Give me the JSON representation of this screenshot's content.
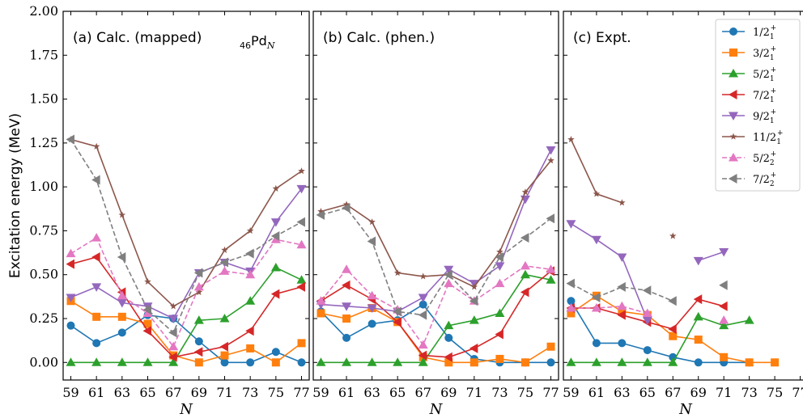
{
  "chart_data": {
    "type": "line",
    "ylabel": "Excitation energy (MeV)",
    "xlabel": "N",
    "ylim": [
      -0.1,
      2.0
    ],
    "yticks": [
      "0.00",
      "0.25",
      "0.50",
      "0.75",
      "1.00",
      "1.25",
      "1.50",
      "1.75",
      "2.00"
    ],
    "xlim": [
      58.4,
      77.6
    ],
    "xticks": [
      59,
      61,
      63,
      65,
      67,
      69,
      71,
      73,
      75,
      77
    ],
    "annotation": {
      "base": "Pd",
      "subscript_left": "46",
      "subscript_right": "N"
    },
    "legend_position": "top-right",
    "series_styles": [
      {
        "name": "1/2₁⁺",
        "color": "#1f77b4",
        "marker": "circle",
        "dash": false
      },
      {
        "name": "3/2₁⁺",
        "color": "#ff7f0e",
        "marker": "square",
        "dash": false
      },
      {
        "name": "5/2₁⁺",
        "color": "#2ca02c",
        "marker": "triangle-up",
        "dash": false
      },
      {
        "name": "7/2₁⁺",
        "color": "#d62728",
        "marker": "triangle-left",
        "dash": false
      },
      {
        "name": "9/2₁⁺",
        "color": "#9467bd",
        "marker": "triangle-down",
        "dash": false
      },
      {
        "name": "11/2₁⁺",
        "color": "#8c564b",
        "marker": "star",
        "dash": false
      },
      {
        "name": "5/2₂⁺",
        "color": "#e377c2",
        "marker": "triangle-up",
        "dash": true
      },
      {
        "name": "7/2₂⁺",
        "color": "#7f7f7f",
        "marker": "triangle-left",
        "dash": true
      }
    ],
    "panels": [
      {
        "title": "(a) Calc. (mapped)",
        "show_annotation": true,
        "show_legend": false,
        "x": [
          59,
          61,
          63,
          65,
          67,
          69,
          71,
          73,
          75,
          77
        ],
        "series": [
          {
            "values": [
              0.21,
              0.11,
              0.17,
              0.27,
              0.25,
              0.12,
              0.0,
              0.0,
              0.06,
              0.0
            ]
          },
          {
            "values": [
              0.35,
              0.26,
              0.26,
              0.22,
              0.04,
              0.0,
              0.04,
              0.08,
              0.0,
              0.11
            ]
          },
          {
            "values": [
              0.0,
              0.0,
              0.0,
              0.0,
              0.0,
              0.24,
              0.25,
              0.35,
              0.54,
              0.47
            ]
          },
          {
            "values": [
              0.56,
              0.6,
              0.4,
              0.18,
              0.03,
              0.06,
              0.09,
              0.18,
              0.39,
              0.43
            ]
          },
          {
            "values": [
              0.37,
              0.43,
              0.34,
              0.32,
              0.25,
              0.51,
              0.57,
              0.52,
              0.8,
              0.99
            ]
          },
          {
            "values": [
              1.27,
              1.23,
              0.84,
              0.46,
              0.32,
              0.4,
              0.64,
              0.75,
              0.99,
              1.09
            ]
          },
          {
            "values": [
              0.62,
              0.71,
              0.38,
              0.28,
              0.09,
              0.43,
              0.52,
              0.5,
              0.7,
              0.67
            ]
          },
          {
            "values": [
              1.27,
              1.04,
              0.6,
              0.3,
              0.17,
              0.51,
              0.57,
              0.62,
              0.72,
              0.8
            ]
          }
        ]
      },
      {
        "title": "(b) Calc. (phen.)",
        "show_annotation": false,
        "show_legend": false,
        "x": [
          59,
          61,
          63,
          65,
          67,
          69,
          71,
          73,
          75,
          77
        ],
        "series": [
          {
            "values": [
              0.29,
              0.14,
              0.22,
              0.24,
              0.33,
              0.14,
              0.02,
              0.0,
              0.0,
              0.0
            ]
          },
          {
            "values": [
              0.28,
              0.25,
              0.31,
              0.23,
              0.03,
              0.0,
              0.0,
              0.02,
              0.0,
              0.09
            ]
          },
          {
            "values": [
              0.0,
              0.0,
              0.0,
              0.0,
              0.0,
              0.21,
              0.24,
              0.28,
              0.5,
              0.47
            ]
          },
          {
            "values": [
              0.35,
              0.44,
              0.36,
              0.23,
              0.04,
              0.03,
              0.08,
              0.16,
              0.4,
              0.52
            ]
          },
          {
            "values": [
              0.33,
              0.32,
              0.31,
              0.29,
              0.37,
              0.53,
              0.45,
              0.55,
              0.93,
              1.21
            ]
          },
          {
            "values": [
              0.86,
              0.9,
              0.8,
              0.51,
              0.49,
              0.5,
              0.43,
              0.63,
              0.97,
              1.15
            ]
          },
          {
            "values": [
              0.35,
              0.53,
              0.38,
              0.3,
              0.1,
              0.45,
              0.35,
              0.45,
              0.55,
              0.53
            ]
          },
          {
            "values": [
              0.84,
              0.88,
              0.69,
              0.29,
              0.27,
              0.5,
              0.35,
              0.6,
              0.71,
              0.82
            ]
          }
        ]
      },
      {
        "title": "(c) Expt.",
        "show_annotation": false,
        "show_legend": true,
        "x": [
          59,
          61,
          63,
          65,
          67,
          69,
          71,
          73,
          75,
          77
        ],
        "series": [
          {
            "values": [
              0.35,
              0.11,
              0.11,
              0.07,
              0.03,
              0.0,
              0.0,
              0.0,
              null,
              null
            ]
          },
          {
            "values": [
              0.28,
              0.38,
              0.29,
              0.27,
              0.15,
              0.13,
              0.03,
              0.0,
              0.0,
              null
            ]
          },
          {
            "values": [
              0.0,
              0.0,
              0.0,
              0.0,
              0.0,
              0.26,
              0.21,
              0.24,
              null,
              null
            ]
          },
          {
            "values": [
              0.31,
              0.31,
              0.27,
              0.23,
              0.19,
              0.36,
              0.32,
              null,
              null,
              null
            ]
          },
          {
            "values": [
              0.79,
              0.7,
              0.6,
              0.24,
              null,
              0.58,
              0.63,
              null,
              null,
              null
            ]
          },
          {
            "values": [
              1.27,
              0.96,
              0.91,
              null,
              0.72,
              null,
              null,
              null,
              null,
              null
            ]
          },
          {
            "values": [
              0.31,
              0.31,
              0.32,
              0.28,
              null,
              null,
              0.24,
              null,
              null,
              null
            ]
          },
          {
            "values": [
              0.45,
              0.37,
              0.43,
              0.41,
              0.35,
              null,
              0.44,
              null,
              null,
              null
            ]
          }
        ]
      }
    ]
  }
}
